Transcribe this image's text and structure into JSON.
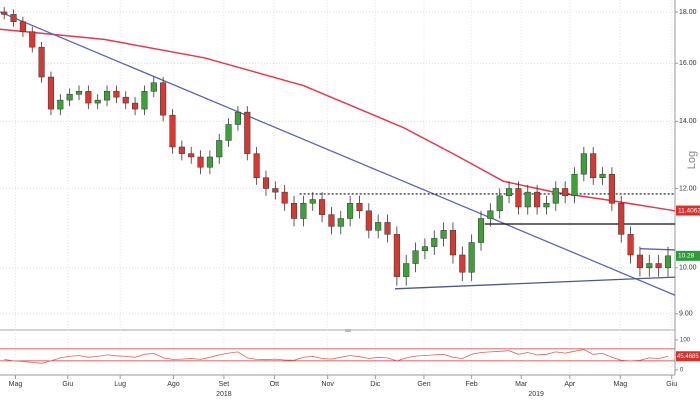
{
  "chart_data": {
    "type": "candlestick",
    "log_scale": true,
    "grid": true,
    "up_color": "#3f9f3a",
    "down_color": "#d33a33",
    "xlim": [
      -0.45,
      71.75
    ],
    "ylim": [
      8.67,
      18.5
    ],
    "yticks": [
      {
        "value": 18,
        "label": "18.00"
      },
      {
        "value": 16,
        "label": "16.00"
      },
      {
        "value": 14,
        "label": "14.00"
      },
      {
        "value": 12,
        "label": "12.00"
      },
      {
        "value": 10,
        "label": "10.00"
      },
      {
        "value": 9,
        "label": "9.00"
      }
    ],
    "y_axis_label": "Log",
    "xticks": [
      {
        "value": 1.2,
        "label": "Mag"
      },
      {
        "value": 6.8,
        "label": "Giu"
      },
      {
        "value": 12.4,
        "label": "Lug"
      },
      {
        "value": 18.1,
        "label": "Ago"
      },
      {
        "value": 23.5,
        "label": "Set"
      },
      {
        "value": 28.9,
        "label": "Ott"
      },
      {
        "value": 34.6,
        "label": "Nov"
      },
      {
        "value": 39.7,
        "label": "Dic"
      },
      {
        "value": 44.9,
        "label": "Gen"
      },
      {
        "value": 50.0,
        "label": "Feb"
      },
      {
        "value": 55.3,
        "label": "Mar"
      },
      {
        "value": 60.5,
        "label": "Apr"
      },
      {
        "value": 65.9,
        "label": "Mag"
      },
      {
        "value": 71.4,
        "label": "Giu"
      }
    ],
    "year_labels": [
      {
        "value": 23.5,
        "label": "2018"
      },
      {
        "value": 56.9,
        "label": "2019"
      }
    ],
    "open": [
      18.0,
      17.9,
      17.6,
      17.2,
      16.6,
      15.5,
      14.4,
      14.7,
      14.9,
      15.0,
      14.6,
      14.7,
      15.0,
      14.8,
      14.6,
      14.4,
      15.0,
      15.3,
      14.2,
      13.2,
      13.0,
      12.9,
      12.6,
      12.9,
      13.4,
      13.9,
      14.3,
      13.0,
      12.3,
      12.0,
      11.9,
      11.6,
      11.2,
      11.6,
      11.7,
      11.3,
      11.0,
      11.2,
      11.6,
      11.4,
      10.9,
      11.1,
      10.8,
      9.8,
      10.1,
      10.4,
      10.5,
      10.7,
      10.9,
      10.3,
      9.9,
      10.6,
      11.2,
      11.4,
      11.8,
      12.0,
      11.5,
      11.9,
      11.5,
      11.6,
      12.0,
      11.8,
      12.4,
      13.0,
      12.3,
      12.4,
      11.6,
      10.8,
      10.3,
      10.0,
      10.1,
      10.0
    ],
    "high": [
      18.2,
      18.1,
      17.8,
      17.4,
      16.8,
      15.7,
      14.9,
      15.1,
      15.2,
      15.2,
      14.9,
      15.2,
      15.2,
      15.0,
      14.8,
      15.2,
      15.5,
      15.5,
      14.4,
      13.4,
      13.2,
      13.1,
      13.1,
      13.6,
      14.1,
      14.5,
      14.5,
      13.2,
      12.5,
      12.2,
      12.1,
      11.8,
      11.8,
      11.9,
      11.9,
      11.5,
      11.4,
      11.8,
      11.8,
      11.6,
      11.3,
      11.3,
      11.0,
      10.3,
      10.6,
      10.7,
      10.9,
      11.1,
      11.1,
      10.5,
      10.8,
      11.4,
      11.6,
      12.0,
      12.2,
      12.2,
      12.1,
      12.1,
      11.8,
      12.2,
      12.2,
      12.6,
      13.2,
      13.2,
      12.6,
      12.6,
      11.8,
      11.0,
      10.5,
      10.3,
      10.3,
      10.5
    ],
    "low": [
      17.7,
      17.4,
      17.0,
      16.4,
      15.3,
      14.2,
      14.2,
      14.5,
      14.7,
      14.4,
      14.4,
      14.5,
      14.6,
      14.4,
      14.2,
      14.2,
      14.8,
      14.0,
      13.0,
      12.8,
      12.7,
      12.4,
      12.4,
      12.7,
      13.2,
      13.7,
      12.8,
      12.1,
      11.8,
      11.7,
      11.4,
      11.0,
      11.0,
      11.4,
      11.1,
      10.8,
      10.8,
      11.0,
      11.2,
      10.7,
      10.7,
      10.6,
      9.6,
      9.6,
      9.9,
      10.2,
      10.3,
      10.5,
      10.1,
      9.7,
      9.7,
      10.4,
      11.0,
      11.2,
      11.6,
      11.3,
      11.3,
      11.3,
      11.3,
      11.4,
      11.6,
      11.6,
      12.2,
      12.1,
      12.1,
      11.4,
      10.6,
      10.1,
      9.8,
      9.8,
      9.8,
      9.8
    ],
    "close": [
      17.9,
      17.6,
      17.2,
      16.6,
      15.5,
      14.4,
      14.7,
      14.9,
      15.0,
      14.6,
      14.7,
      15.0,
      14.8,
      14.6,
      14.4,
      15.0,
      15.3,
      14.2,
      13.2,
      13.0,
      12.9,
      12.6,
      12.9,
      13.4,
      13.9,
      14.3,
      13.0,
      12.3,
      12.0,
      11.9,
      11.6,
      11.2,
      11.6,
      11.7,
      11.3,
      11.0,
      11.2,
      11.6,
      11.4,
      10.9,
      11.1,
      10.8,
      9.8,
      10.1,
      10.4,
      10.5,
      10.7,
      10.9,
      10.3,
      9.9,
      10.6,
      11.2,
      11.4,
      11.8,
      12.0,
      11.5,
      11.9,
      11.5,
      11.6,
      12.0,
      11.8,
      12.4,
      13.0,
      12.3,
      12.4,
      11.6,
      10.8,
      10.3,
      10.0,
      10.1,
      10.0,
      10.28
    ],
    "moving_average": {
      "color": "#e8364d",
      "x": [
        -0.45,
        10.7,
        21.4,
        32,
        42.7,
        48,
        53.4,
        58.8,
        64.2,
        71.75
      ],
      "values": [
        17.3,
        16.9,
        16.2,
        15.2,
        13.8,
        13.0,
        12.2,
        11.9,
        11.7,
        11.4
      ]
    },
    "trendlines": [
      {
        "color": "#5b63b8",
        "style": "solid",
        "x": [
          -0.45,
          71.75
        ],
        "values": [
          18.0,
          9.39
        ]
      },
      {
        "color": "#4a5a8a",
        "style": "solid",
        "x": [
          41.8,
          71.75
        ],
        "values": [
          9.53,
          9.79
        ]
      },
      {
        "color": "#5b63b8",
        "style": "solid",
        "x": [
          68.0,
          71.75
        ],
        "values": [
          10.45,
          10.42
        ]
      },
      {
        "color": "#111111",
        "style": "dotted",
        "x": [
          31.6,
          71.75
        ],
        "values": [
          11.85,
          11.85
        ]
      },
      {
        "color": "#111111",
        "style": "solid",
        "x": [
          51.4,
          71.75
        ],
        "values": [
          11.06,
          11.06
        ]
      }
    ],
    "price_markers": [
      {
        "value": 10.28,
        "color": "#2e9a3a"
      },
      {
        "value": 11.4063,
        "color": "#d9302c"
      }
    ],
    "rsi": {
      "color": "#e06060",
      "ylim": [
        -7,
        123
      ],
      "yticks": [
        100,
        50,
        0
      ],
      "levels": [
        70,
        30
      ],
      "level_color": "#d9302c",
      "values": [
        35,
        30,
        28,
        25,
        22,
        30,
        40,
        45,
        48,
        42,
        45,
        50,
        47,
        45,
        42,
        52,
        55,
        40,
        35,
        36,
        38,
        35,
        42,
        50,
        56,
        60,
        40,
        35,
        34,
        36,
        33,
        32,
        42,
        45,
        38,
        36,
        42,
        48,
        44,
        38,
        42,
        40,
        30,
        40,
        46,
        48,
        50,
        52,
        42,
        38,
        52,
        58,
        60,
        62,
        64,
        52,
        58,
        50,
        52,
        60,
        56,
        62,
        68,
        52,
        55,
        42,
        32,
        30,
        32,
        40,
        38,
        45.4685
      ],
      "marker_color": "#d9302c"
    }
  }
}
